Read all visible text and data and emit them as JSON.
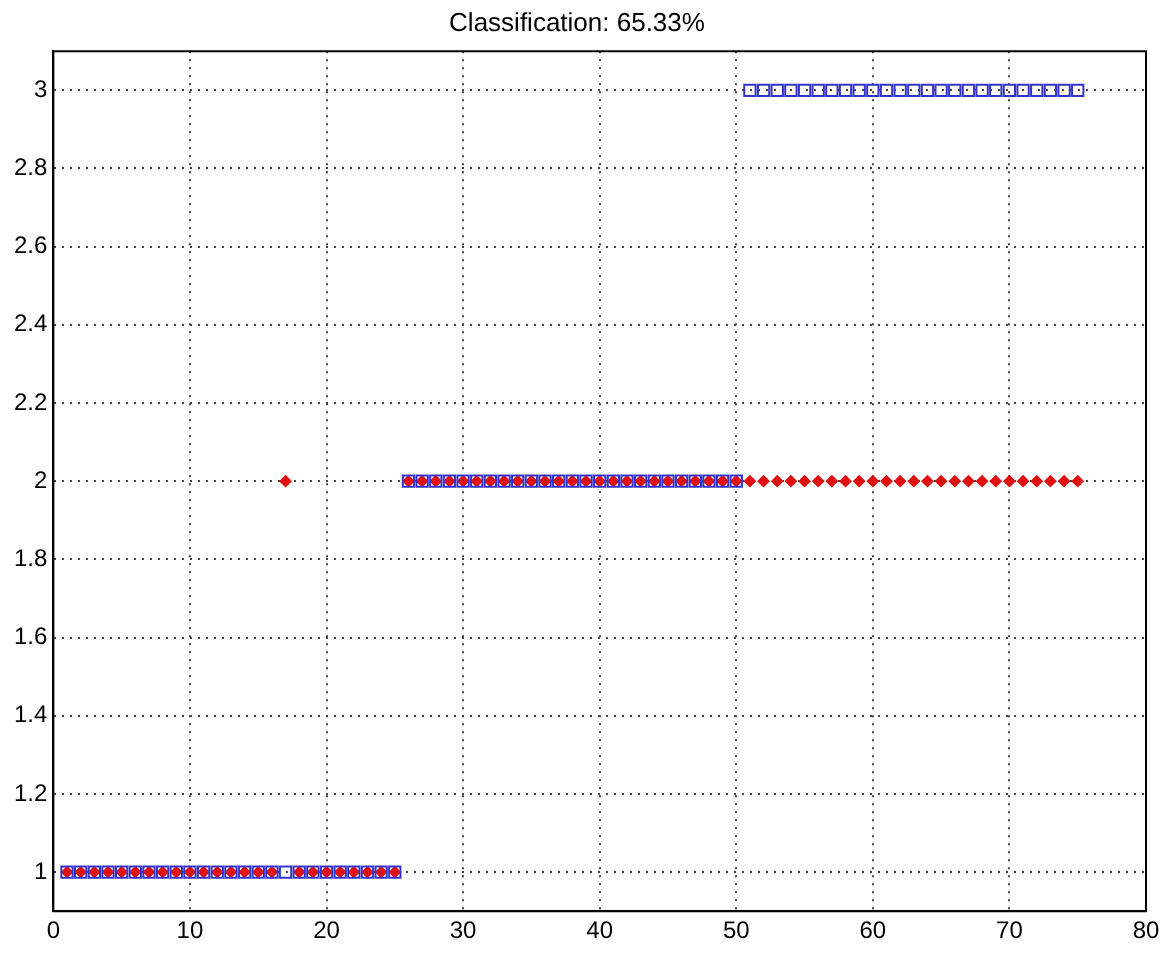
{
  "chart_data": {
    "type": "scatter",
    "title": "Classification: 65.33%",
    "xlim": [
      0,
      80
    ],
    "xticks": [
      0,
      10,
      20,
      30,
      40,
      50,
      60,
      70,
      80
    ],
    "ylim": [
      0.9,
      3.1
    ],
    "yticks": [
      1,
      1.2,
      1.4,
      1.6,
      1.8,
      2,
      2.2,
      2.4,
      2.6,
      2.8,
      3
    ],
    "grid": true,
    "line_style": "dotted",
    "series": [
      {
        "color": "#3333cc",
        "marker": "square",
        "x": [
          1,
          2,
          3,
          4,
          5,
          6,
          7,
          8,
          9,
          10,
          11,
          12,
          13,
          14,
          15,
          16,
          17,
          18,
          19,
          20,
          21,
          22,
          23,
          24,
          25,
          26,
          27,
          28,
          29,
          30,
          31,
          32,
          33,
          34,
          35,
          36,
          37,
          38,
          39,
          40,
          41,
          42,
          43,
          44,
          45,
          46,
          47,
          48,
          49,
          50,
          51,
          52,
          53,
          54,
          55,
          56,
          57,
          58,
          59,
          60,
          61,
          62,
          63,
          64,
          65,
          66,
          67,
          68,
          69,
          70,
          71,
          72,
          73,
          74,
          75
        ],
        "values": [
          1,
          1,
          1,
          1,
          1,
          1,
          1,
          1,
          1,
          1,
          1,
          1,
          1,
          1,
          1,
          1,
          1,
          1,
          1,
          1,
          1,
          1,
          1,
          1,
          1,
          2,
          2,
          2,
          2,
          2,
          2,
          2,
          2,
          2,
          2,
          2,
          2,
          2,
          2,
          2,
          2,
          2,
          2,
          2,
          2,
          2,
          2,
          2,
          2,
          2,
          3,
          3,
          3,
          3,
          3,
          3,
          3,
          3,
          3,
          3,
          3,
          3,
          3,
          3,
          3,
          3,
          3,
          3,
          3,
          3,
          3,
          3,
          3,
          3,
          3
        ]
      },
      {
        "color": "#e01010",
        "marker": "diamond",
        "x": [
          1,
          2,
          3,
          4,
          5,
          6,
          7,
          8,
          9,
          10,
          11,
          12,
          13,
          14,
          15,
          16,
          17,
          18,
          19,
          20,
          21,
          22,
          23,
          24,
          25,
          26,
          27,
          28,
          29,
          30,
          31,
          32,
          33,
          34,
          35,
          36,
          37,
          38,
          39,
          40,
          41,
          42,
          43,
          44,
          45,
          46,
          47,
          48,
          49,
          50,
          51,
          52,
          53,
          54,
          55,
          56,
          57,
          58,
          59,
          60,
          61,
          62,
          63,
          64,
          65,
          66,
          67,
          68,
          69,
          70,
          71,
          72,
          73,
          74,
          75
        ],
        "values": [
          1,
          1,
          1,
          1,
          1,
          1,
          1,
          1,
          1,
          1,
          1,
          1,
          1,
          1,
          1,
          1,
          2,
          1,
          1,
          1,
          1,
          1,
          1,
          1,
          1,
          2,
          2,
          2,
          2,
          2,
          2,
          2,
          2,
          2,
          2,
          2,
          2,
          2,
          2,
          2,
          2,
          2,
          2,
          2,
          2,
          2,
          2,
          2,
          2,
          2,
          2,
          2,
          2,
          2,
          2,
          2,
          2,
          2,
          2,
          2,
          2,
          2,
          2,
          2,
          2,
          2,
          2,
          2,
          2,
          2,
          2,
          2,
          2,
          2,
          2
        ]
      }
    ]
  }
}
